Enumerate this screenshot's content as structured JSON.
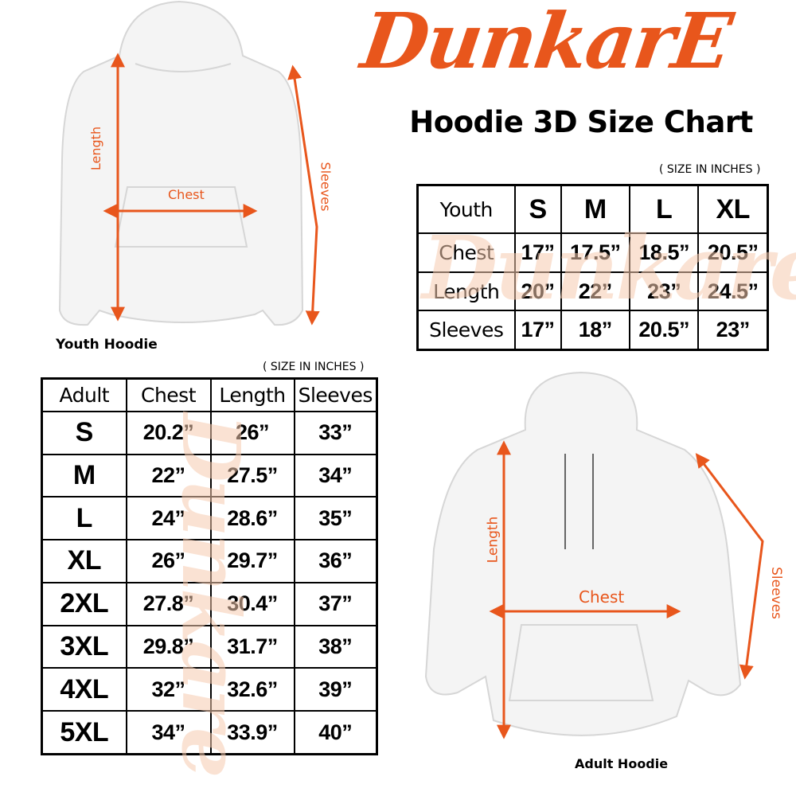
{
  "brand": {
    "logo_text": "DunkarE",
    "accent_color": "#e8561c",
    "watermark_color": "#f6cbb0"
  },
  "title": "Hoodie 3D Size Chart",
  "youth_figure": {
    "caption": "Youth Hoodie",
    "labels": {
      "length": "Length",
      "chest": "Chest",
      "sleeves": "Sleeves"
    }
  },
  "adult_figure": {
    "caption": "Adult Hoodie",
    "labels": {
      "length": "Length",
      "chest": "Chest",
      "sleeves": "Sleeves"
    }
  },
  "youth_table": {
    "unit_note": "( SIZE IN INCHES )",
    "header": [
      "Youth",
      "S",
      "M",
      "L",
      "XL"
    ],
    "rows": [
      [
        "Chest",
        "17”",
        "17.5”",
        "18.5”",
        "20.5”"
      ],
      [
        "Length",
        "20”",
        "22”",
        "23”",
        "24.5”"
      ],
      [
        "Sleeves",
        "17”",
        "18”",
        "20.5”",
        "23”"
      ]
    ]
  },
  "adult_table": {
    "unit_note": "( SIZE IN INCHES )",
    "header": [
      "Adult",
      "Chest",
      "Length",
      "Sleeves"
    ],
    "rows": [
      [
        "S",
        "20.2”",
        "26”",
        "33”"
      ],
      [
        "M",
        "22”",
        "27.5”",
        "34”"
      ],
      [
        "L",
        "24”",
        "28.6”",
        "35”"
      ],
      [
        "XL",
        "26”",
        "29.7”",
        "36”"
      ],
      [
        "2XL",
        "27.8”",
        "30.4”",
        "37”"
      ],
      [
        "3XL",
        "29.8”",
        "31.7”",
        "38”"
      ],
      [
        "4XL",
        "32”",
        "32.6”",
        "39”"
      ],
      [
        "5XL",
        "34”",
        "33.9”",
        "40”"
      ]
    ]
  }
}
